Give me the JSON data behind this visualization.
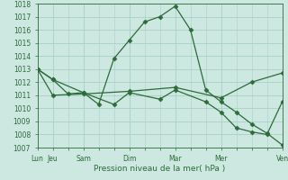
{
  "xlabel": "Pression niveau de la mer( hPa )",
  "background_color": "#cce8e0",
  "grid_color": "#a8cfc8",
  "line_color": "#2d6b3a",
  "ylim": [
    1007,
    1018
  ],
  "yticks": [
    1007,
    1008,
    1009,
    1010,
    1011,
    1012,
    1013,
    1014,
    1015,
    1016,
    1017,
    1018
  ],
  "xlim": [
    0,
    16
  ],
  "x_tick_positions": [
    0,
    1,
    3,
    6,
    9,
    12,
    16
  ],
  "x_tick_labels": [
    "Lun",
    "Jeu",
    "Sam",
    "Dim",
    "Mar",
    "Mer",
    "Ven"
  ],
  "series1_x": [
    0,
    1,
    2,
    3,
    4,
    5,
    6,
    7,
    8,
    9,
    10,
    11,
    12,
    13,
    14,
    15,
    16
  ],
  "series1_y": [
    1013.0,
    1012.2,
    1011.1,
    1011.2,
    1010.3,
    1013.8,
    1015.2,
    1016.6,
    1017.0,
    1017.8,
    1016.0,
    1011.4,
    1010.5,
    1009.7,
    1008.8,
    1008.1,
    1007.2
  ],
  "series2_x": [
    0,
    1,
    3,
    5,
    6,
    8,
    9,
    11,
    12,
    13,
    14,
    15,
    16
  ],
  "series2_y": [
    1013.0,
    1012.2,
    1011.2,
    1010.3,
    1011.2,
    1010.7,
    1011.4,
    1010.5,
    1009.7,
    1008.5,
    1008.2,
    1008.0,
    1010.5
  ],
  "series3_x": [
    0,
    1,
    3,
    6,
    9,
    12,
    14,
    16
  ],
  "series3_y": [
    1013.0,
    1011.0,
    1011.1,
    1011.3,
    1011.6,
    1010.8,
    1012.0,
    1012.7
  ]
}
